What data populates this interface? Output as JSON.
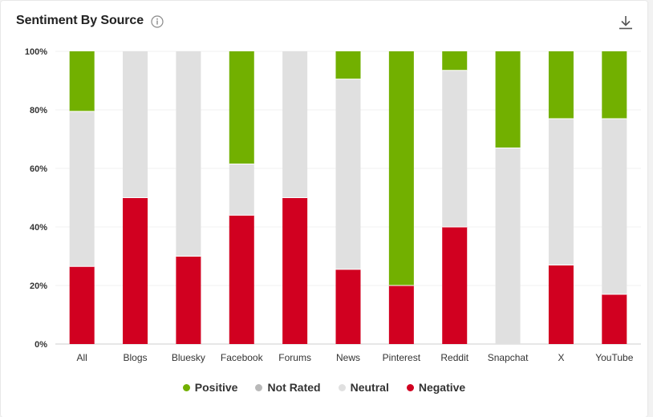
{
  "header": {
    "title": "Sentiment By Source",
    "info_icon": "info-icon",
    "download_icon": "download-icon"
  },
  "colors": {
    "positive": "#72b000",
    "not_rated": "#b9b9b9",
    "neutral": "#e0e0e0",
    "negative": "#d10020"
  },
  "chart_data": {
    "type": "bar",
    "stacked": true,
    "categories": [
      "All",
      "Blogs",
      "Bluesky",
      "Facebook",
      "Forums",
      "News",
      "Pinterest",
      "Reddit",
      "Snapchat",
      "X",
      "YouTube"
    ],
    "series": [
      {
        "name": "Negative",
        "values": [
          26.5,
          50,
          30,
          44,
          50,
          25.5,
          20,
          40,
          0,
          27,
          17
        ]
      },
      {
        "name": "Neutral",
        "values": [
          53,
          50,
          70,
          17.5,
          50,
          65,
          0,
          53.5,
          67,
          50,
          60
        ]
      },
      {
        "name": "Not Rated",
        "values": [
          0,
          0,
          0,
          0,
          0,
          0,
          0,
          0,
          0,
          0,
          0
        ]
      },
      {
        "name": "Positive",
        "values": [
          20.5,
          0,
          0,
          38.5,
          0,
          9.5,
          80,
          6.5,
          33,
          23,
          23
        ]
      }
    ],
    "yticks": [
      "0%",
      "20%",
      "40%",
      "60%",
      "80%",
      "100%"
    ],
    "ylim": [
      0,
      100
    ],
    "grid": true,
    "legend_placement": "bottom",
    "legend": [
      "Positive",
      "Not Rated",
      "Neutral",
      "Negative"
    ]
  }
}
